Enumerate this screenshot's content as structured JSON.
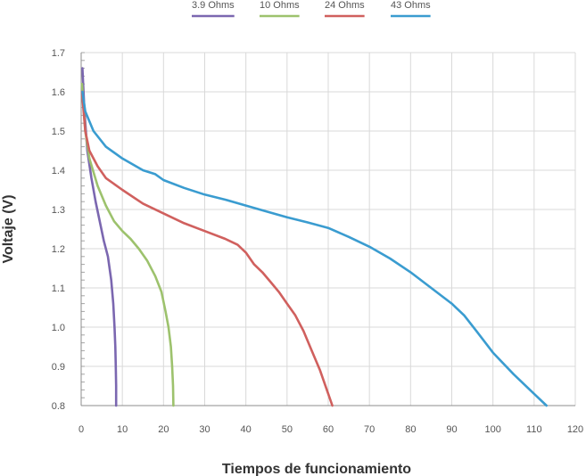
{
  "chart_data": {
    "type": "line",
    "xlabel": "Tiempos de funcionamiento",
    "ylabel": "Voltaje (V)",
    "xlim": [
      0,
      120
    ],
    "ylim": [
      0.8,
      1.7
    ],
    "x_ticks": [
      0,
      10,
      20,
      30,
      40,
      50,
      60,
      70,
      80,
      90,
      100,
      110,
      120
    ],
    "y_ticks": [
      "1.7",
      "1.6",
      "1.5",
      "1.4",
      "1.3",
      "1.2",
      "1.1",
      "1.0",
      "0.9",
      "0.8"
    ],
    "grid": true,
    "legend_position": "top",
    "series": [
      {
        "name": "3.9 Ohms",
        "color": "#7b67b0",
        "points": [
          [
            0.3,
            1.66
          ],
          [
            0.8,
            1.55
          ],
          [
            1.5,
            1.45
          ],
          [
            2.5,
            1.38
          ],
          [
            3.5,
            1.32
          ],
          [
            4.5,
            1.27
          ],
          [
            5.5,
            1.22
          ],
          [
            6.5,
            1.18
          ],
          [
            7.3,
            1.12
          ],
          [
            7.8,
            1.06
          ],
          [
            8.1,
            1.0
          ],
          [
            8.3,
            0.95
          ],
          [
            8.4,
            0.9
          ],
          [
            8.5,
            0.85
          ],
          [
            8.5,
            0.8
          ]
        ]
      },
      {
        "name": "10 Ohms",
        "color": "#9dc26d",
        "points": [
          [
            0.2,
            1.62
          ],
          [
            1,
            1.5
          ],
          [
            2,
            1.43
          ],
          [
            4,
            1.36
          ],
          [
            6,
            1.31
          ],
          [
            8,
            1.27
          ],
          [
            10,
            1.245
          ],
          [
            12,
            1.225
          ],
          [
            14,
            1.2
          ],
          [
            16,
            1.17
          ],
          [
            18,
            1.13
          ],
          [
            19.5,
            1.09
          ],
          [
            20.5,
            1.04
          ],
          [
            21.2,
            1.0
          ],
          [
            21.8,
            0.95
          ],
          [
            22.1,
            0.9
          ],
          [
            22.3,
            0.85
          ],
          [
            22.4,
            0.8
          ]
        ]
      },
      {
        "name": "24 Ohms",
        "color": "#d0605e",
        "points": [
          [
            0.2,
            1.6
          ],
          [
            1,
            1.5
          ],
          [
            2,
            1.45
          ],
          [
            4,
            1.41
          ],
          [
            6,
            1.38
          ],
          [
            10,
            1.35
          ],
          [
            15,
            1.315
          ],
          [
            20,
            1.29
          ],
          [
            25,
            1.265
          ],
          [
            30,
            1.245
          ],
          [
            35,
            1.225
          ],
          [
            38,
            1.21
          ],
          [
            40,
            1.19
          ],
          [
            42,
            1.16
          ],
          [
            44,
            1.14
          ],
          [
            46,
            1.115
          ],
          [
            48,
            1.09
          ],
          [
            50,
            1.06
          ],
          [
            52,
            1.03
          ],
          [
            54,
            0.99
          ],
          [
            56,
            0.94
          ],
          [
            58,
            0.89
          ],
          [
            60,
            0.83
          ],
          [
            61,
            0.8
          ]
        ]
      },
      {
        "name": "43 Ohms",
        "color": "#3a9cd0",
        "points": [
          [
            0.3,
            1.6
          ],
          [
            1,
            1.55
          ],
          [
            3,
            1.5
          ],
          [
            6,
            1.46
          ],
          [
            10,
            1.43
          ],
          [
            15,
            1.4
          ],
          [
            18,
            1.39
          ],
          [
            20,
            1.375
          ],
          [
            25,
            1.355
          ],
          [
            30,
            1.338
          ],
          [
            35,
            1.325
          ],
          [
            40,
            1.31
          ],
          [
            45,
            1.295
          ],
          [
            50,
            1.28
          ],
          [
            55,
            1.267
          ],
          [
            60,
            1.253
          ],
          [
            65,
            1.23
          ],
          [
            70,
            1.205
          ],
          [
            75,
            1.175
          ],
          [
            80,
            1.14
          ],
          [
            85,
            1.1
          ],
          [
            90,
            1.06
          ],
          [
            93,
            1.03
          ],
          [
            96,
            0.99
          ],
          [
            100,
            0.935
          ],
          [
            105,
            0.88
          ],
          [
            110,
            0.83
          ],
          [
            113,
            0.8
          ]
        ]
      }
    ]
  }
}
